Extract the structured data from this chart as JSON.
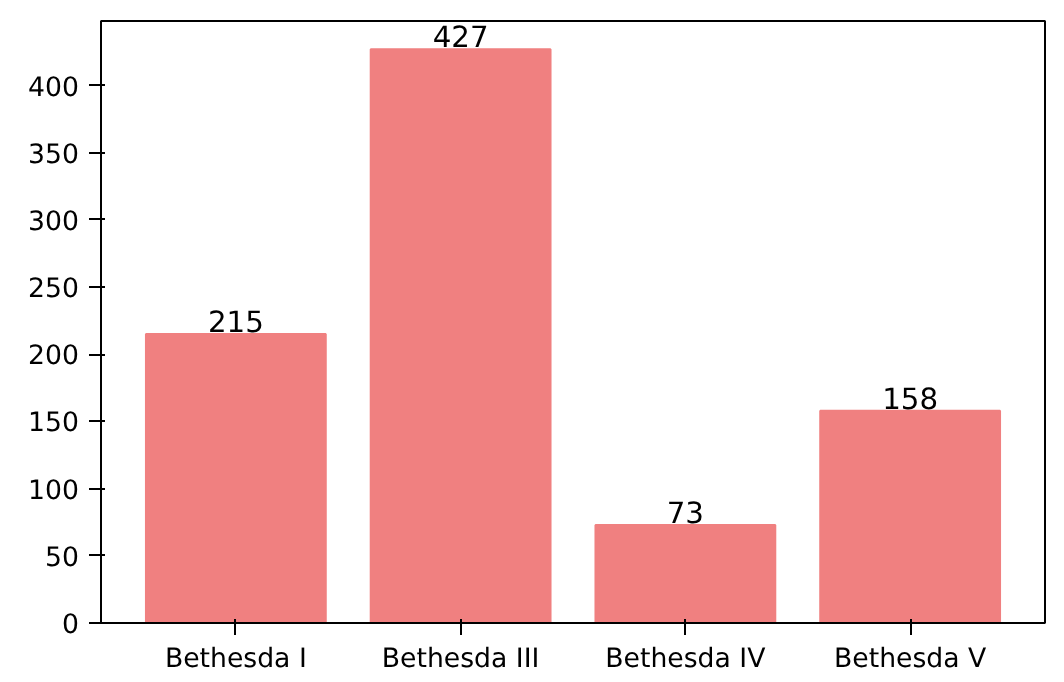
{
  "chart_data": {
    "type": "bar",
    "categories": [
      "Bethesda I",
      "Bethesda III",
      "Bethesda IV",
      "Bethesda V"
    ],
    "values": [
      215,
      427,
      73,
      158
    ],
    "color": "#f08080",
    "ylim": [
      0,
      448
    ],
    "yticks": [
      0,
      50,
      100,
      150,
      200,
      250,
      300,
      350,
      400
    ],
    "data_labels": true,
    "grid": false
  }
}
